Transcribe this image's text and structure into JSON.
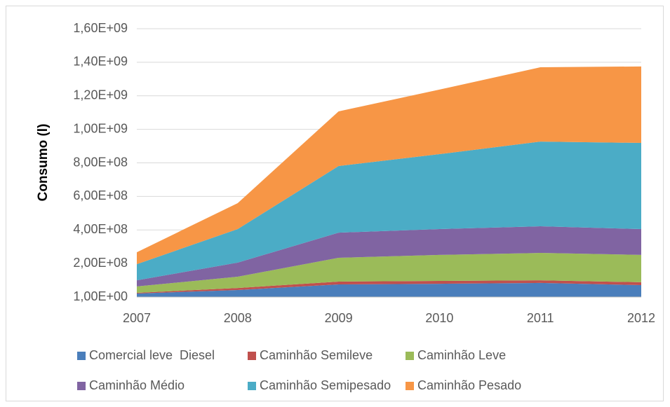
{
  "chart_data": {
    "type": "stacked_area",
    "y_label": "Consumo (l)",
    "x": [
      2007,
      2008,
      2009,
      2010,
      2011,
      2012
    ],
    "xlim": [
      2007,
      2012
    ],
    "xticks": [
      2007,
      2008,
      2009,
      2010,
      2011,
      2012
    ],
    "ylim": [
      0,
      1600000000
    ],
    "yticks": [
      {
        "value": 1,
        "label": "1,00E+00"
      },
      {
        "value": 200000000,
        "label": "2,00E+08"
      },
      {
        "value": 400000000,
        "label": "4,00E+08"
      },
      {
        "value": 600000000,
        "label": "6,00E+08"
      },
      {
        "value": 800000000,
        "label": "8,00E+08"
      },
      {
        "value": 1000000000,
        "label": "1,00E+09"
      },
      {
        "value": 1200000000,
        "label": "1,20E+09"
      },
      {
        "value": 1400000000,
        "label": "1,40E+09"
      },
      {
        "value": 1600000000,
        "label": "1,60E+09"
      }
    ],
    "grid": true,
    "legend": "bottom",
    "series": [
      {
        "name": "Comercial leve  Diesel",
        "color": "#4a7ebb",
        "values": [
          21000000,
          42000000,
          75000000,
          79000000,
          84000000,
          71000000
        ]
      },
      {
        "name": "Caminhão Semileve",
        "color": "#c0504d",
        "values": [
          4000000,
          12000000,
          17000000,
          17000000,
          16000000,
          17000000
        ]
      },
      {
        "name": "Caminhão Leve",
        "color": "#9bbb59",
        "values": [
          38000000,
          67000000,
          142000000,
          155000000,
          163000000,
          163000000
        ]
      },
      {
        "name": "Caminhão Médio",
        "color": "#8064a2",
        "values": [
          37000000,
          84000000,
          150000000,
          154000000,
          159000000,
          154000000
        ]
      },
      {
        "name": "Caminhão Semipesado",
        "color": "#4bacc6",
        "values": [
          96000000,
          200000000,
          397000000,
          447000000,
          505000000,
          514000000
        ]
      },
      {
        "name": "Caminhão Pesado",
        "color": "#f79646",
        "values": [
          71000000,
          155000000,
          326000000,
          385000000,
          443000000,
          456000000
        ]
      }
    ]
  }
}
